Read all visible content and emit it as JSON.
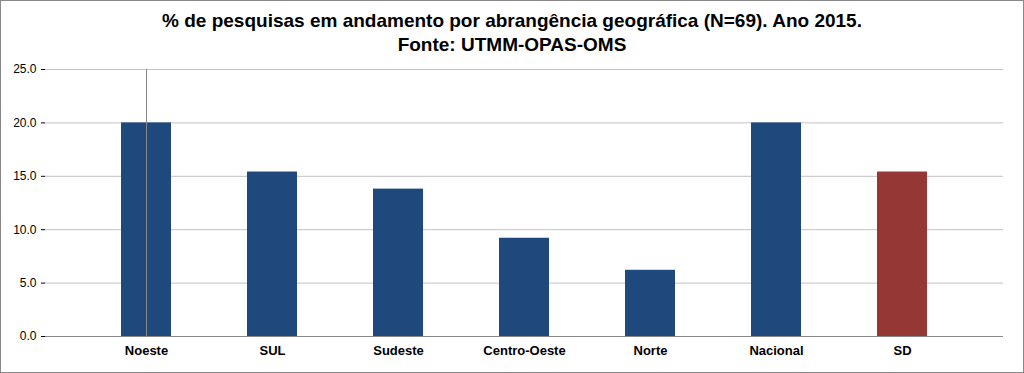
{
  "chart_data": {
    "type": "bar",
    "title": "% de pesquisas em andamento por abrangência geográfica (N=69). Ano 2015.",
    "subtitle": "Fonte: UTMM-OPAS-OMS",
    "categories": [
      "Noeste",
      "SUL",
      "Sudeste",
      "Centro-Oeste",
      "Norte",
      "Nacional",
      "SD"
    ],
    "values": [
      20.0,
      15.4,
      13.8,
      9.2,
      6.2,
      20.0,
      15.4
    ],
    "colors": [
      "#1f497d",
      "#1f497d",
      "#1f497d",
      "#1f497d",
      "#1f497d",
      "#1f497d",
      "#953735"
    ],
    "ylim": [
      0,
      25
    ],
    "yticks": [
      {
        "value": 0,
        "label": "0.0"
      },
      {
        "value": 5,
        "label": "5.0"
      },
      {
        "value": 10,
        "label": "10.0"
      },
      {
        "value": 15,
        "label": "15.0"
      },
      {
        "value": 20,
        "label": "20.0"
      },
      {
        "value": 25,
        "label": "25.0"
      }
    ],
    "grid": true
  }
}
